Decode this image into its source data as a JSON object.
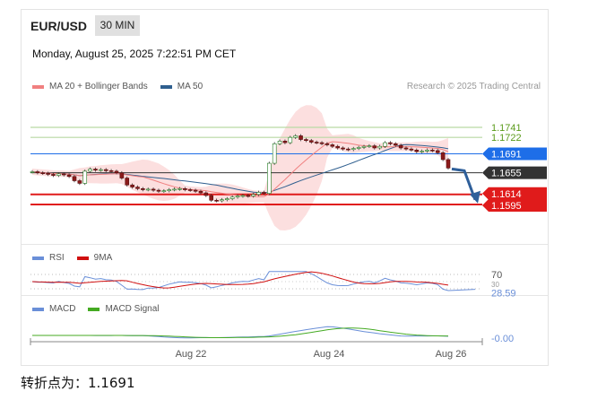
{
  "header": {
    "symbol": "EUR/USD",
    "timeframe": "30 MIN",
    "datetime": "Monday, August 25, 2025 7:22:51 PM CET"
  },
  "legend": {
    "ma20": "MA 20 + Bollinger Bands",
    "ma50": "MA 50",
    "ma20_color": "#f08080",
    "ma50_color": "#2f5f8f"
  },
  "credit": "Research © 2025 Trading Central",
  "rsi_legend": {
    "rsi": "RSI",
    "ma": "9MA",
    "rsi_color": "#6a8fd8",
    "ma_color": "#d01010"
  },
  "macd_legend": {
    "macd": "MACD",
    "signal": "MACD Signal",
    "macd_color": "#6a8fd8",
    "signal_color": "#44aa22"
  },
  "footer": {
    "text": "转折点为：1.1691"
  },
  "chart_data": {
    "type": "candlestick",
    "x_tick_labels": [
      "Aug 22",
      "Aug 24",
      "Aug 26"
    ],
    "price_levels": [
      {
        "value": "1.1741",
        "color": "#5a9a1a",
        "style": "line"
      },
      {
        "value": "1.1722",
        "color": "#5a9a1a",
        "style": "line"
      },
      {
        "value": "1.1691",
        "color": "#1e6ee8",
        "style": "box"
      },
      {
        "value": "1.1655",
        "color": "#333333",
        "style": "box"
      },
      {
        "value": "1.1614",
        "color": "#e01b1b",
        "style": "box"
      },
      {
        "value": "1.1595",
        "color": "#e01b1b",
        "style": "box"
      }
    ],
    "close": [
      1.1657,
      1.1655,
      1.1654,
      1.1652,
      1.165,
      1.1653,
      1.1651,
      1.1648,
      1.164,
      1.1635,
      1.1658,
      1.1662,
      1.166,
      1.1661,
      1.1659,
      1.1658,
      1.1655,
      1.1645,
      1.1632,
      1.1628,
      1.1625,
      1.1623,
      1.1624,
      1.1622,
      1.162,
      1.1621,
      1.1623,
      1.1624,
      1.1625,
      1.1623,
      1.1622,
      1.162,
      1.1617,
      1.1612,
      1.1603,
      1.1602,
      1.1604,
      1.1606,
      1.1609,
      1.1611,
      1.1612,
      1.1611,
      1.1614,
      1.1618,
      1.1616,
      1.1673,
      1.171,
      1.1715,
      1.1712,
      1.1722,
      1.1725,
      1.1718,
      1.1716,
      1.1713,
      1.1712,
      1.171,
      1.1708,
      1.1705,
      1.1702,
      1.17,
      1.1699,
      1.1701,
      1.1703,
      1.1705,
      1.1706,
      1.1702,
      1.1705,
      1.1712,
      1.171,
      1.1707,
      1.1702,
      1.17,
      1.1698,
      1.1695,
      1.1696,
      1.1698,
      1.1697,
      1.1693,
      1.168,
      1.1664
    ],
    "rsi": {
      "levels": [
        "70",
        "30"
      ],
      "last": "28.59"
    },
    "macd": {
      "last": "-0.00"
    }
  }
}
